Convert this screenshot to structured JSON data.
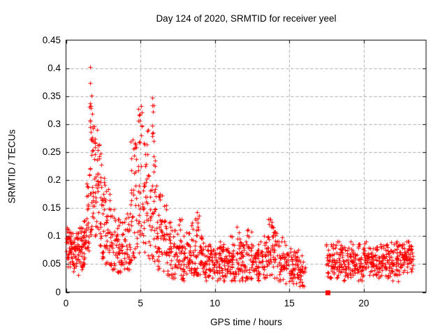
{
  "window": {
    "background": "#ffffff"
  },
  "chart": {
    "title": "Day 124 of 2020, SRMTID for receiver yeel",
    "xlabel": "GPS time / hours",
    "ylabel": "SRMTID / TECUs"
  },
  "colors": {
    "marker": "#ff0000",
    "frame": "#000000",
    "grid": "#a8a8a8",
    "background": "#ffffff",
    "text": "#000000"
  },
  "chart_data": {
    "type": "scatter",
    "title": "Day 124 of 2020, SRMTID for receiver yeel",
    "xlabel": "GPS time / hours",
    "ylabel": "SRMTID / TECUs",
    "xlim": [
      0,
      24.18
    ],
    "ylim": [
      0,
      0.45
    ],
    "x_ticks": [
      0,
      5,
      10,
      15,
      20
    ],
    "x_tick_labels": [
      "0",
      "5",
      "10",
      "15",
      "20"
    ],
    "y_ticks": [
      0,
      0.05,
      0.1,
      0.15,
      0.2,
      0.25,
      0.3,
      0.35,
      0.4,
      0.45
    ],
    "y_tick_labels": [
      "0",
      "0.05",
      "0.1",
      "0.15",
      "0.2",
      "0.25",
      "0.3",
      "0.35",
      "0.4",
      "0.45"
    ],
    "grid": true,
    "legend": false,
    "data_gap_hours": [
      16.1,
      17.45
    ],
    "series": [
      {
        "name": "SRMTID",
        "marker": "plus",
        "color": "#ff0000",
        "marker_size_px": 7,
        "segment_fields": [
          "x_start",
          "x_end",
          "count",
          "y_min",
          "y_max",
          "shape"
        ],
        "density_segments": [
          [
            0.0,
            0.1,
            8,
            0.06,
            0.125,
            "band"
          ],
          [
            0.1,
            0.35,
            26,
            0.045,
            0.115,
            "band"
          ],
          [
            0.35,
            0.6,
            26,
            0.035,
            0.105,
            "band"
          ],
          [
            0.6,
            0.85,
            26,
            0.03,
            0.105,
            "band"
          ],
          [
            0.85,
            1.1,
            26,
            0.04,
            0.115,
            "band"
          ],
          [
            1.1,
            1.35,
            24,
            0.05,
            0.13,
            "band"
          ],
          [
            1.35,
            1.55,
            20,
            0.07,
            0.2,
            "tail"
          ],
          [
            1.55,
            1.75,
            22,
            0.1,
            0.345,
            "tail"
          ],
          [
            1.75,
            1.95,
            22,
            0.13,
            0.31,
            "tail"
          ],
          [
            1.95,
            2.15,
            22,
            0.1,
            0.3,
            "tail"
          ],
          [
            2.15,
            2.4,
            22,
            0.08,
            0.27,
            "tail"
          ],
          [
            2.4,
            2.65,
            22,
            0.06,
            0.22,
            "tail"
          ],
          [
            2.65,
            2.95,
            26,
            0.05,
            0.185,
            "tail"
          ],
          [
            2.95,
            3.25,
            26,
            0.04,
            0.15,
            "tail"
          ],
          [
            3.25,
            3.6,
            28,
            0.035,
            0.13,
            "band"
          ],
          [
            3.6,
            3.95,
            28,
            0.03,
            0.125,
            "band"
          ],
          [
            3.95,
            4.3,
            28,
            0.04,
            0.14,
            "band"
          ],
          [
            4.3,
            4.55,
            20,
            0.05,
            0.27,
            "tail"
          ],
          [
            4.55,
            4.8,
            20,
            0.06,
            0.285,
            "tail"
          ],
          [
            4.8,
            5.1,
            24,
            0.07,
            0.33,
            "tail"
          ],
          [
            5.1,
            5.4,
            22,
            0.06,
            0.27,
            "tail"
          ],
          [
            5.4,
            5.65,
            20,
            0.05,
            0.3,
            "tail"
          ],
          [
            5.65,
            5.9,
            22,
            0.06,
            0.345,
            "tail"
          ],
          [
            5.9,
            6.15,
            20,
            0.05,
            0.245,
            "tail"
          ],
          [
            6.15,
            6.45,
            24,
            0.04,
            0.185,
            "tail"
          ],
          [
            6.45,
            6.75,
            24,
            0.035,
            0.155,
            "band"
          ],
          [
            6.75,
            7.05,
            24,
            0.03,
            0.125,
            "band"
          ],
          [
            7.05,
            7.4,
            26,
            0.025,
            0.11,
            "band"
          ],
          [
            7.4,
            7.75,
            26,
            0.03,
            0.13,
            "band"
          ],
          [
            7.75,
            8.1,
            26,
            0.02,
            0.115,
            "band"
          ],
          [
            8.1,
            8.4,
            24,
            0.03,
            0.105,
            "band"
          ],
          [
            8.4,
            8.7,
            22,
            0.03,
            0.13,
            "tail"
          ],
          [
            8.7,
            8.95,
            20,
            0.03,
            0.145,
            "tail"
          ],
          [
            8.95,
            9.3,
            26,
            0.02,
            0.1,
            "band"
          ],
          [
            9.3,
            9.65,
            26,
            0.02,
            0.085,
            "band"
          ],
          [
            9.65,
            10.0,
            26,
            0.025,
            0.085,
            "band"
          ],
          [
            10.0,
            10.35,
            26,
            0.02,
            0.09,
            "band"
          ],
          [
            10.35,
            10.7,
            26,
            0.02,
            0.085,
            "band"
          ],
          [
            10.7,
            11.05,
            26,
            0.025,
            0.09,
            "band"
          ],
          [
            11.05,
            11.4,
            26,
            0.02,
            0.1,
            "band"
          ],
          [
            11.4,
            11.75,
            26,
            0.02,
            0.115,
            "band"
          ],
          [
            11.75,
            12.1,
            26,
            0.02,
            0.09,
            "band"
          ],
          [
            12.1,
            12.45,
            26,
            0.025,
            0.11,
            "band"
          ],
          [
            12.45,
            12.8,
            26,
            0.02,
            0.085,
            "band"
          ],
          [
            12.8,
            13.15,
            26,
            0.02,
            0.09,
            "band"
          ],
          [
            13.15,
            13.5,
            26,
            0.025,
            0.1,
            "band"
          ],
          [
            13.5,
            13.85,
            26,
            0.03,
            0.13,
            "band"
          ],
          [
            13.85,
            14.2,
            26,
            0.025,
            0.115,
            "band"
          ],
          [
            14.2,
            14.55,
            26,
            0.02,
            0.1,
            "band"
          ],
          [
            14.55,
            14.9,
            26,
            0.015,
            0.09,
            "band"
          ],
          [
            14.9,
            15.25,
            26,
            0.015,
            0.08,
            "band"
          ],
          [
            15.25,
            15.6,
            26,
            0.015,
            0.075,
            "band"
          ],
          [
            15.6,
            16.1,
            30,
            0.01,
            0.065,
            "band"
          ],
          [
            17.45,
            17.8,
            24,
            0.025,
            0.085,
            "band"
          ],
          [
            17.8,
            18.15,
            26,
            0.03,
            0.085,
            "band"
          ],
          [
            18.15,
            18.5,
            26,
            0.025,
            0.09,
            "band"
          ],
          [
            18.5,
            18.85,
            26,
            0.02,
            0.08,
            "band"
          ],
          [
            18.85,
            19.2,
            26,
            0.025,
            0.09,
            "band"
          ],
          [
            19.2,
            19.55,
            26,
            0.03,
            0.085,
            "band"
          ],
          [
            19.55,
            19.9,
            26,
            0.02,
            0.085,
            "band"
          ],
          [
            19.9,
            20.25,
            26,
            0.03,
            0.09,
            "band"
          ],
          [
            20.25,
            20.6,
            26,
            0.03,
            0.08,
            "band"
          ],
          [
            20.6,
            20.95,
            26,
            0.03,
            0.08,
            "band"
          ],
          [
            20.95,
            21.3,
            26,
            0.025,
            0.085,
            "band"
          ],
          [
            21.3,
            21.65,
            26,
            0.025,
            0.085,
            "band"
          ],
          [
            21.65,
            22.0,
            26,
            0.02,
            0.09,
            "band"
          ],
          [
            22.0,
            22.35,
            26,
            0.03,
            0.09,
            "band"
          ],
          [
            22.35,
            22.7,
            26,
            0.03,
            0.085,
            "band"
          ],
          [
            22.7,
            23.05,
            26,
            0.035,
            0.09,
            "band"
          ],
          [
            23.05,
            23.3,
            20,
            0.035,
            0.085,
            "band"
          ]
        ],
        "peak_points": [
          [
            1.63,
            0.402
          ],
          [
            1.63,
            0.373
          ],
          [
            1.7,
            0.351
          ],
          [
            1.64,
            0.337
          ],
          [
            1.68,
            0.329
          ],
          [
            1.74,
            0.318
          ],
          [
            1.6,
            0.305
          ],
          [
            2.25,
            0.262
          ],
          [
            2.3,
            0.247
          ],
          [
            4.5,
            0.272
          ],
          [
            4.62,
            0.258
          ],
          [
            4.97,
            0.306
          ],
          [
            5.05,
            0.332
          ],
          [
            5.07,
            0.321
          ],
          [
            5.1,
            0.296
          ],
          [
            5.79,
            0.347
          ],
          [
            5.8,
            0.334
          ],
          [
            5.82,
            0.322
          ],
          [
            5.77,
            0.297
          ],
          [
            5.84,
            0.285
          ],
          [
            5.9,
            0.27
          ],
          [
            8.78,
            0.143
          ],
          [
            8.82,
            0.131
          ],
          [
            11.45,
            0.116
          ],
          [
            12.22,
            0.111
          ],
          [
            13.82,
            0.125
          ],
          [
            13.88,
            0.116
          ],
          [
            14.0,
            0.108
          ],
          [
            22.32,
            0.019
          ]
        ]
      },
      {
        "name": "flag-marker",
        "marker": "filled-square",
        "color": "#ff0000",
        "marker_size_px": 7,
        "points": [
          [
            17.56,
            0.0
          ]
        ]
      }
    ]
  }
}
